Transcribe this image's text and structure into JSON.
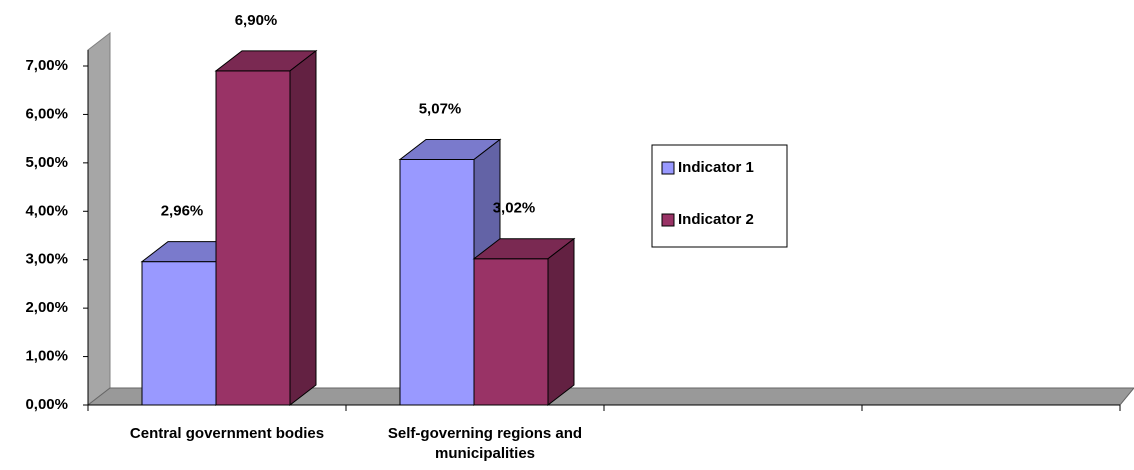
{
  "chart_data": {
    "type": "bar3d",
    "categories": [
      "Central government bodies",
      "Self-governing regions and municipalities",
      null,
      null
    ],
    "series": [
      {
        "name": "Indicator 1",
        "color": "#9999ff",
        "values": [
          2.96,
          5.07,
          null,
          null
        ],
        "value_labels": [
          "2,96%",
          "5,07%",
          null,
          null
        ]
      },
      {
        "name": "Indicator 2",
        "color": "#993366",
        "values": [
          6.9,
          3.02,
          null,
          null
        ],
        "value_labels": [
          "6,90%",
          "3,02%",
          null,
          null
        ]
      }
    ],
    "ylim": [
      0,
      7
    ],
    "yticks": [
      {
        "value": 0,
        "label": "0,00%"
      },
      {
        "value": 1,
        "label": "1,00%"
      },
      {
        "value": 2,
        "label": "2,00%"
      },
      {
        "value": 3,
        "label": "3,00%"
      },
      {
        "value": 4,
        "label": "4,00%"
      },
      {
        "value": 5,
        "label": "5,00%"
      },
      {
        "value": 6,
        "label": "6,00%"
      },
      {
        "value": 7,
        "label": "7,00%"
      }
    ],
    "legend": "right"
  }
}
